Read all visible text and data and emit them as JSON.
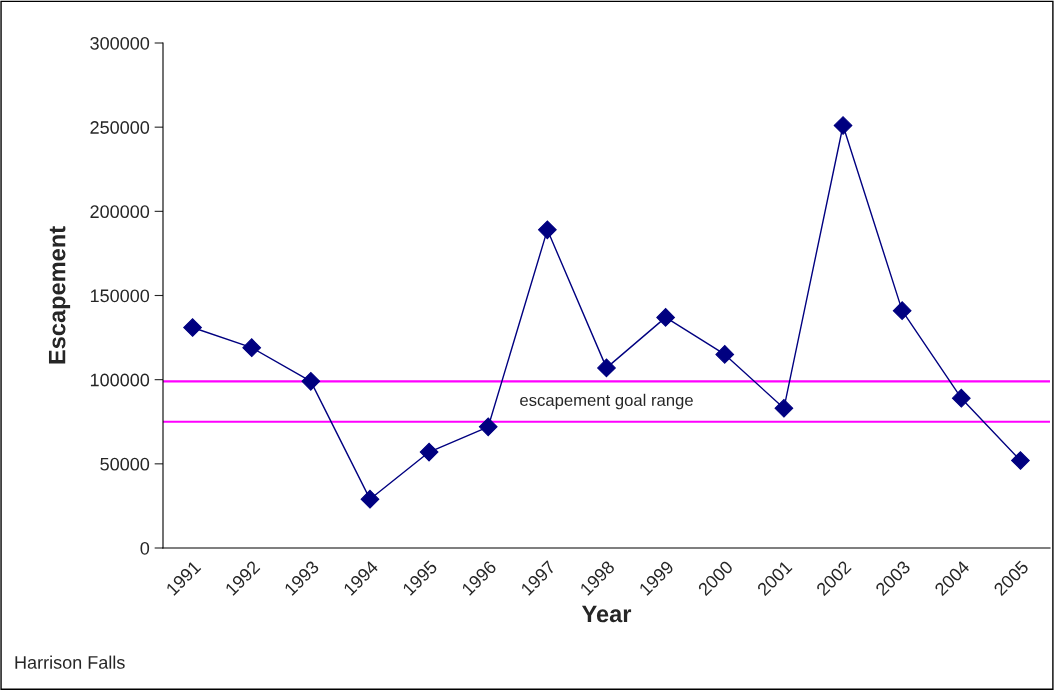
{
  "chart_data": {
    "type": "line",
    "xlabel": "Year",
    "ylabel": "Escapement",
    "categories": [
      "1991",
      "1992",
      "1993",
      "1994",
      "1995",
      "1996",
      "1997",
      "1998",
      "1999",
      "2000",
      "2001",
      "2002",
      "2003",
      "2004",
      "2005"
    ],
    "series": [
      {
        "color": "#000080",
        "values": [
          131000,
          119000,
          99000,
          29000,
          57000,
          72000,
          189000,
          107000,
          137000,
          115000,
          83000,
          251000,
          141000,
          89000,
          52000
        ]
      }
    ],
    "marker": "diamond",
    "ylim": [
      0,
      300000
    ],
    "yticks": [
      0,
      50000,
      100000,
      150000,
      200000,
      250000,
      300000
    ],
    "grid": false,
    "legend": false,
    "ref_lines": [
      {
        "axis": "y",
        "value": 99000,
        "color": "#ff00ff"
      },
      {
        "axis": "y",
        "value": 75000,
        "color": "#ff00ff"
      }
    ],
    "annotations": [
      "escapement goal range",
      "Harrison Falls"
    ]
  }
}
